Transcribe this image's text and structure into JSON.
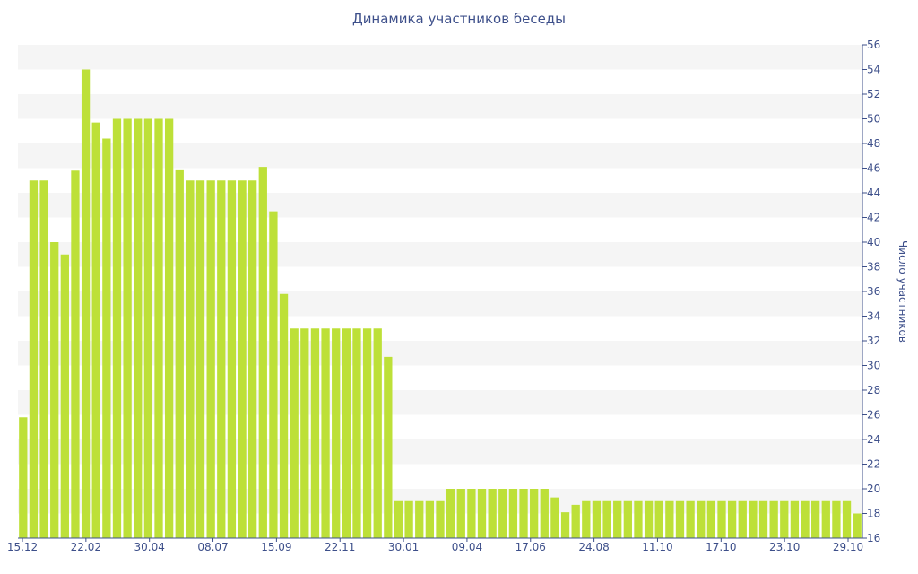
{
  "chart_data": {
    "type": "bar",
    "title": "Динамика участников беседы",
    "ylabel": "Число участников",
    "y_axis_side": "right",
    "ylim": [
      16,
      56
    ],
    "yticks": [
      16,
      18,
      20,
      22,
      24,
      26,
      28,
      30,
      32,
      34,
      36,
      38,
      40,
      42,
      44,
      46,
      48,
      50,
      52,
      54,
      56
    ],
    "x_tick_labels": [
      "15.12",
      "22.02",
      "30.04",
      "08.07",
      "15.09",
      "22.11",
      "30.01",
      "09.04",
      "17.06",
      "24.08",
      "11.10",
      "17.10",
      "23.10",
      "29.10"
    ],
    "grid": "alternating horizontal bands",
    "values": [
      25.8,
      45,
      45,
      40,
      39,
      45.8,
      54,
      49.7,
      48.4,
      50,
      50,
      50,
      50,
      50,
      50,
      45.9,
      45,
      45,
      45,
      45,
      45,
      45,
      45,
      46.1,
      42.5,
      35.8,
      33,
      33,
      33,
      33,
      33,
      33,
      33,
      33,
      33,
      30.7,
      19,
      19,
      19,
      19,
      19,
      20,
      20,
      20,
      20,
      20,
      20,
      20,
      20,
      20,
      20,
      19.3,
      18.1,
      18.7,
      19,
      19,
      19,
      19,
      19,
      19,
      19,
      19,
      19,
      19,
      19,
      19,
      19,
      19,
      19,
      19,
      19,
      19,
      19,
      19,
      19,
      19,
      19,
      19,
      19,
      19,
      18
    ],
    "bar_color": "#bde038",
    "band_color": "#f5f5f5",
    "text_color": "#3d4f8a"
  }
}
